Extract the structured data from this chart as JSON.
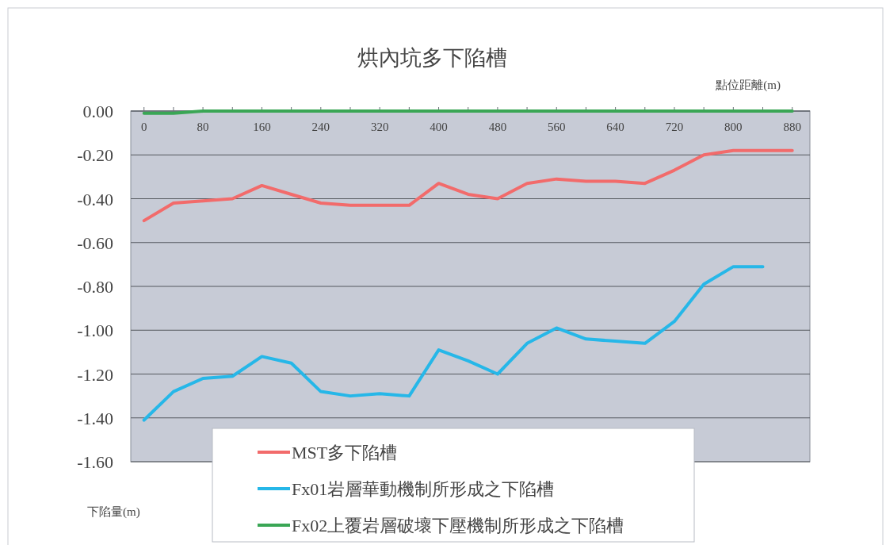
{
  "chart_data": {
    "type": "line",
    "title": "烘內坑多下陷槽",
    "xlabel": "點位距離(m)",
    "ylabel": "下陷量(m)",
    "x": [
      0,
      40,
      80,
      120,
      160,
      200,
      240,
      280,
      320,
      360,
      400,
      440,
      480,
      520,
      560,
      600,
      640,
      680,
      720,
      760,
      800,
      840,
      880
    ],
    "series": [
      {
        "name": "MST多下陷槽",
        "color": "#f26b6b",
        "values": [
          -0.5,
          -0.42,
          -0.41,
          -0.4,
          -0.34,
          -0.38,
          -0.42,
          -0.43,
          -0.43,
          -0.43,
          -0.33,
          -0.38,
          -0.4,
          -0.33,
          -0.31,
          -0.32,
          -0.32,
          -0.33,
          -0.27,
          -0.2,
          -0.18,
          -0.18,
          -0.18
        ]
      },
      {
        "name": "Fx01岩層華動機制所形成之下陷槽",
        "color": "#26b7e8",
        "values": [
          -1.41,
          -1.28,
          -1.22,
          -1.21,
          -1.12,
          -1.15,
          -1.28,
          -1.3,
          -1.29,
          -1.3,
          -1.09,
          -1.14,
          -1.2,
          -1.06,
          -0.99,
          -1.04,
          -1.05,
          -1.06,
          -0.96,
          -0.79,
          -0.71,
          -0.71,
          null
        ]
      },
      {
        "name": "Fx02上覆岩層破壞下壓機制所形成之下陷槽",
        "color": "#3aa655",
        "values": [
          -0.01,
          -0.01,
          0,
          0,
          0,
          0,
          0,
          0,
          0,
          0,
          0,
          0,
          0,
          0,
          0,
          0,
          0,
          0,
          0,
          0,
          0,
          0,
          0
        ]
      }
    ],
    "xlim": [
      -18,
      904
    ],
    "ylim": [
      -1.6,
      0
    ],
    "xticks": [
      0,
      {
        "value": 40,
        "label": null
      },
      80,
      {
        "value": 120,
        "label": null
      },
      160,
      {
        "value": 200,
        "label": null
      },
      240,
      {
        "value": 280,
        "label": null
      },
      320,
      {
        "value": 360,
        "label": null
      },
      400,
      {
        "value": 440,
        "label": null
      },
      480,
      {
        "value": 520,
        "label": null
      },
      560,
      {
        "value": 600,
        "label": null
      },
      640,
      {
        "value": 680,
        "label": null
      },
      720,
      {
        "value": 760,
        "label": null
      },
      800,
      {
        "value": 840,
        "label": null
      },
      880
    ],
    "yticks": [
      {
        "value": 0,
        "label": "0.00"
      },
      {
        "value": -0.2,
        "label": "-0.20"
      },
      {
        "value": -0.4,
        "label": "-0.40"
      },
      {
        "value": -0.6,
        "label": "-0.60"
      },
      {
        "value": -0.8,
        "label": "-0.80"
      },
      {
        "value": -1.0,
        "label": "-1.00"
      },
      {
        "value": -1.2,
        "label": "-1.20"
      },
      {
        "value": -1.4,
        "label": "-1.40"
      },
      {
        "value": -1.6,
        "label": "-1.60"
      }
    ],
    "grid": "y",
    "legend": "bottom"
  }
}
